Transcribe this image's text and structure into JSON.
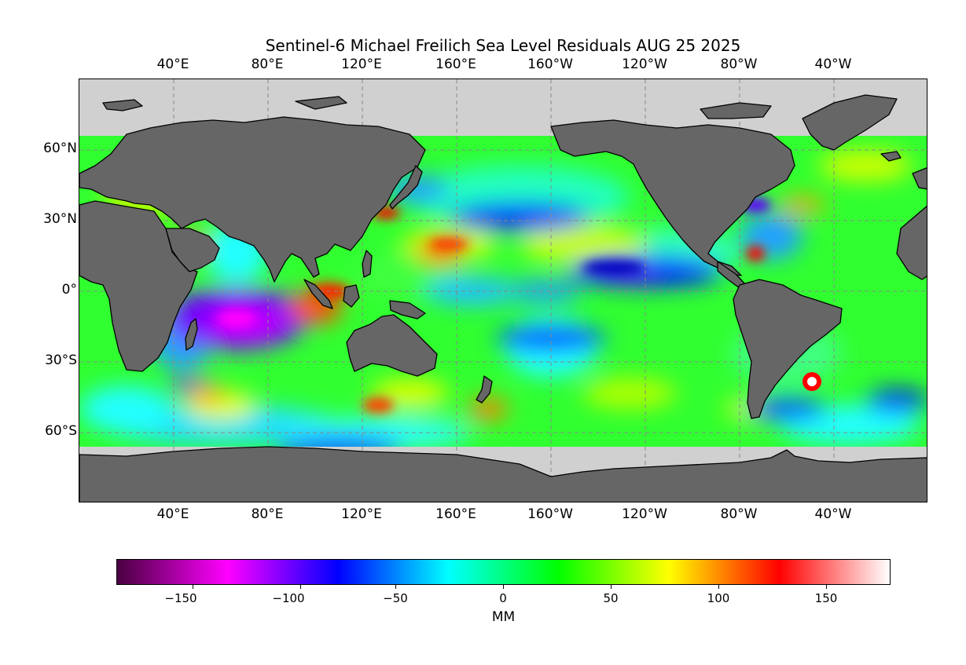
{
  "title": "Sentinel-6 Michael Freilich Sea Level Residuals AUG 25 2025",
  "x_ticks": [
    "40°E",
    "80°E",
    "120°E",
    "160°E",
    "160°W",
    "120°W",
    "80°W",
    "40°W"
  ],
  "y_ticks": [
    "60°N",
    "30°N",
    "0°",
    "30°S",
    "60°S"
  ],
  "colorbar": {
    "label": "MM",
    "ticks": [
      "−150",
      "−100",
      "−50",
      "0",
      "50",
      "100",
      "150"
    ],
    "range": [
      -180,
      180
    ],
    "colors": [
      "#4a0040",
      "#ff00ff",
      "#0000ff",
      "#00ffff",
      "#00ff00",
      "#ffff00",
      "#ff0000",
      "#ffffff"
    ]
  },
  "map": {
    "projection": "plate-carree",
    "central_longitude": 180,
    "land_color": "#666666",
    "no_data_color": "#d0d0d0",
    "data_lat_range": [
      -66,
      66
    ]
  }
}
